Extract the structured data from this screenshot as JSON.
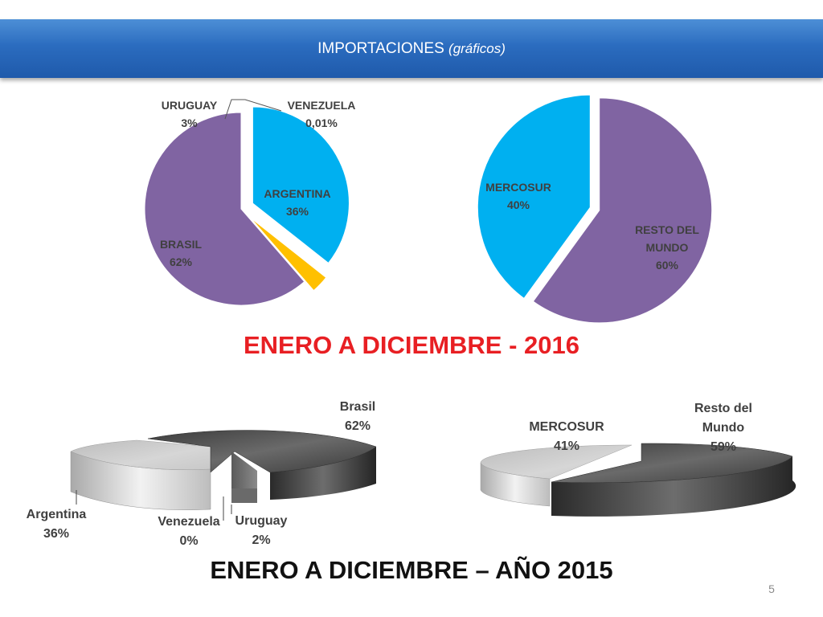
{
  "header": {
    "title": "IMPORTACIONES",
    "subtitle": "(gráficos)"
  },
  "headings": {
    "y2016": "ENERO A DICIEMBRE - 2016",
    "y2015": "ENERO A DICIEMBRE – AÑO 2015"
  },
  "page_number": "5",
  "colors": {
    "argentina": "#00b0f0",
    "brasil": "#8064a2",
    "uruguay": "#ffc000",
    "mercosur": "#00b0f0",
    "resto": "#8064a2",
    "header": "#2b6cbf",
    "heading_2016": "#e81f23"
  },
  "chart_data": [
    {
      "type": "pie",
      "title": "ENERO A DICIEMBRE - 2016",
      "categories": [
        "ARGENTINA",
        "URUGUAY",
        "VENEZUELA",
        "BRASIL"
      ],
      "values": [
        36,
        3,
        0.01,
        62
      ],
      "labels": [
        {
          "name": "ARGENTINA",
          "value": "36%"
        },
        {
          "name": "URUGUAY",
          "value": "3%"
        },
        {
          "name": "VENEZUELA",
          "value": "0,01%"
        },
        {
          "name": "BRASIL",
          "value": "62%"
        }
      ]
    },
    {
      "type": "pie",
      "title": "ENERO A DICIEMBRE - 2016",
      "categories": [
        "RESTO DEL MUNDO",
        "MERCOSUR"
      ],
      "values": [
        60,
        40
      ],
      "labels": [
        {
          "name": "MERCOSUR",
          "value": "40%"
        },
        {
          "name": "RESTO DEL MUNDO",
          "value": "60%"
        }
      ]
    },
    {
      "type": "pie",
      "title": "ENERO A DICIEMBRE – AÑO 2015",
      "categories": [
        "Brasil",
        "Argentina",
        "Venezuela",
        "Uruguay"
      ],
      "values": [
        62,
        36,
        0,
        2
      ],
      "labels": [
        {
          "name": "Brasil",
          "value": "62%"
        },
        {
          "name": "Argentina",
          "value": "36%"
        },
        {
          "name": "Venezuela",
          "value": "0%"
        },
        {
          "name": "Uruguay",
          "value": "2%"
        }
      ]
    },
    {
      "type": "pie",
      "title": "ENERO A DICIEMBRE – AÑO 2015",
      "categories": [
        "Resto del Mundo",
        "MERCOSUR"
      ],
      "values": [
        59,
        41
      ],
      "labels": [
        {
          "name": "MERCOSUR",
          "value": "41%"
        },
        {
          "name": "Resto del Mundo",
          "value": "59%"
        }
      ]
    }
  ]
}
